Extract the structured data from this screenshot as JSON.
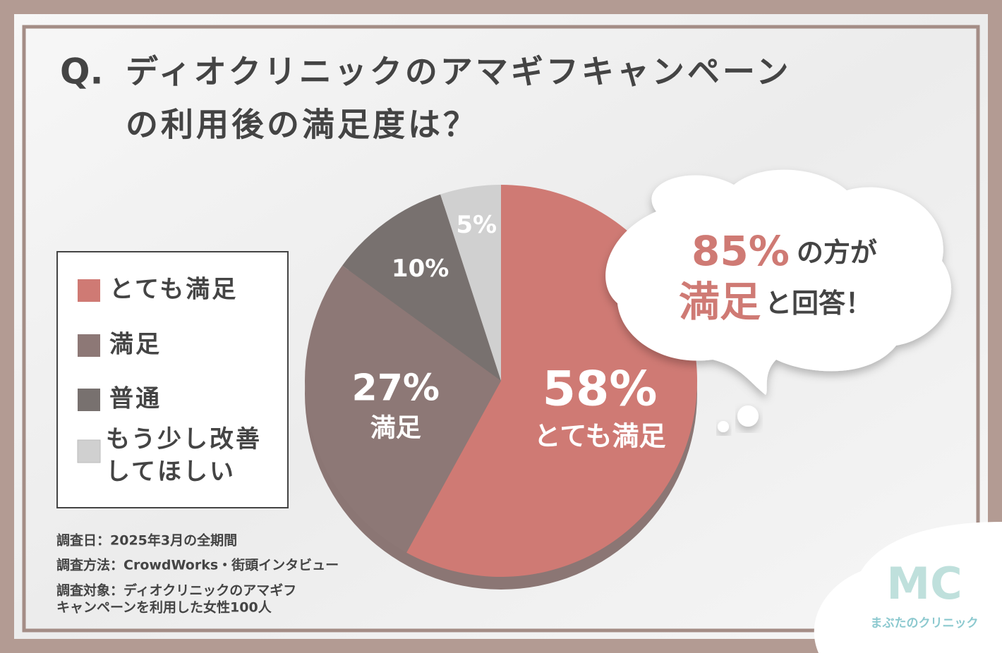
{
  "chart_data": {
    "type": "pie",
    "title_prefix": "Q.",
    "title": [
      "ディオクリニックのアマギフキャンペーン",
      "の利用後の満足度は？"
    ],
    "categories": [
      "とても満足",
      "満足",
      "普通",
      "もう少し改善してほしい"
    ],
    "values": [
      58,
      27,
      10,
      5
    ],
    "value_labels": [
      "58%",
      "27%",
      "10%",
      "5%"
    ],
    "colors": [
      "#cf7a74",
      "#8d7876",
      "#78716f",
      "#d0d0d0"
    ],
    "legend": "left",
    "callout": {
      "value": 85,
      "value_label": "85%",
      "line1": "の方が",
      "highlight": "満足",
      "line2": "と回答！"
    },
    "notes": [
      "調査日：2025年3月の全期間",
      "調査方法：CrowdWorks・街頭インタビュー",
      "調査対象：ディオクリニックのアマギフ",
      "キャンペーンを利用した女性100人"
    ],
    "logo": {
      "mark": "MC",
      "name": "まぶたのクリニック"
    }
  }
}
